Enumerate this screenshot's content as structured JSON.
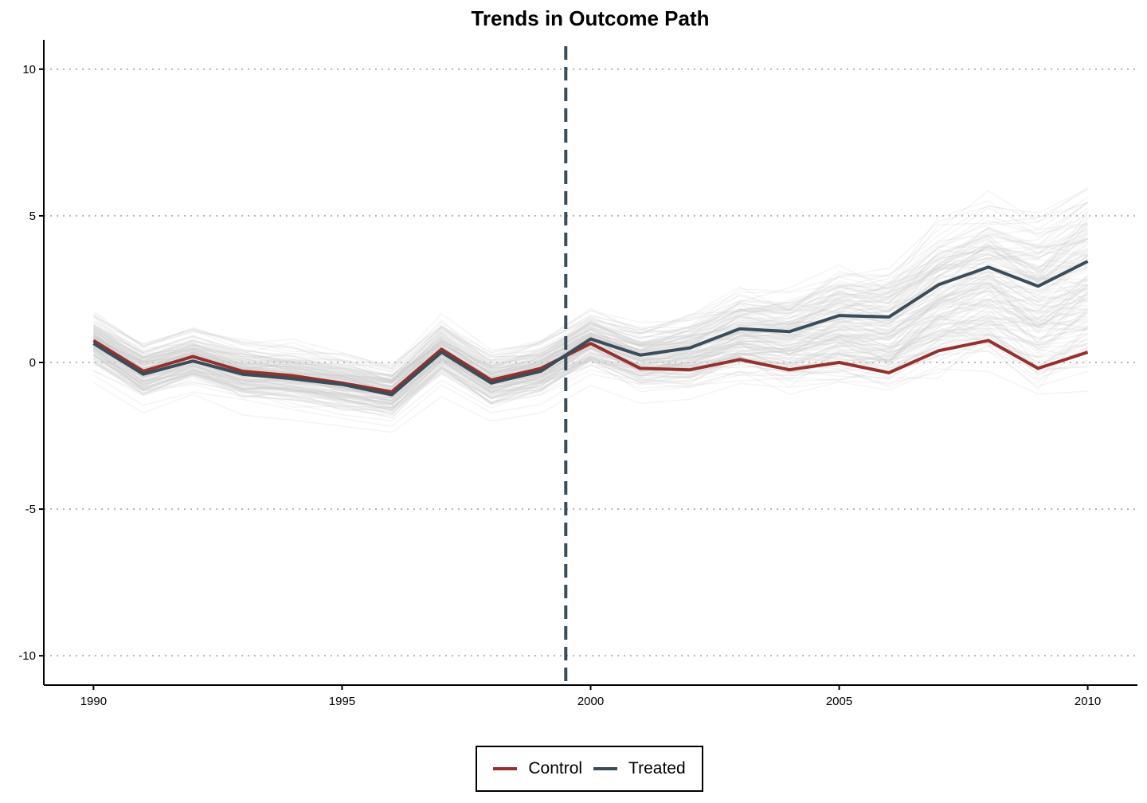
{
  "chart_data": {
    "type": "line",
    "title": "Trends in Outcome Path",
    "xlabel": "",
    "ylabel": "",
    "xlim": [
      1989,
      2011
    ],
    "ylim": [
      -11,
      11
    ],
    "x_ticks": [
      1990,
      1995,
      2000,
      2005,
      2010
    ],
    "y_ticks": [
      10,
      5,
      0,
      -5,
      -10
    ],
    "x": [
      1990,
      1991,
      1992,
      1993,
      1994,
      1995,
      1996,
      1997,
      1998,
      1999,
      2000,
      2001,
      2002,
      2003,
      2004,
      2005,
      2006,
      2007,
      2008,
      2009,
      2010
    ],
    "series": [
      {
        "name": "Control",
        "color": "#96302a",
        "values": [
          0.75,
          -0.3,
          0.2,
          -0.3,
          -0.45,
          -0.7,
          -1.0,
          0.45,
          -0.6,
          -0.2,
          0.65,
          -0.2,
          -0.25,
          0.1,
          -0.25,
          0.0,
          -0.35,
          0.4,
          0.75,
          -0.2,
          0.35
        ]
      },
      {
        "name": "Treated",
        "color": "#3b4c5a",
        "values": [
          0.65,
          -0.4,
          0.05,
          -0.4,
          -0.55,
          -0.75,
          -1.1,
          0.35,
          -0.7,
          -0.3,
          0.8,
          0.25,
          0.5,
          1.15,
          1.05,
          1.6,
          1.55,
          2.65,
          3.25,
          2.6,
          3.45
        ]
      }
    ],
    "treatment_line_x": 1999.5,
    "grid": "horizontal dotted",
    "legend_position": "bottom",
    "background_paths": {
      "count": 150,
      "color": "#cccccc"
    }
  }
}
